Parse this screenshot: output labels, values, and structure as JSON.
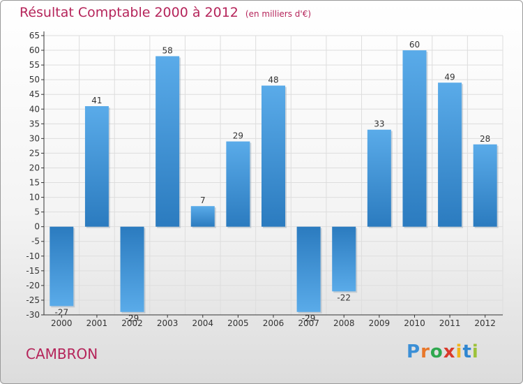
{
  "header": {
    "title": "Résultat Comptable 2000 à 2012",
    "unit": "(en milliers d'€)"
  },
  "footer": {
    "city": "CAMBRON",
    "logo": [
      "P",
      "r",
      "o",
      "x",
      "i",
      "t",
      "i"
    ],
    "logo_colors": [
      "#3b8fd6",
      "#e8772a",
      "#2fa84f",
      "#d93a2b",
      "#f0b51c",
      "#2f86d0",
      "#9dc23a"
    ]
  },
  "colors": {
    "bar_top": "#5aabe9",
    "bar_bottom": "#2b7bbf",
    "axis": "#333333",
    "grid": "#dddddd",
    "label": "#333333"
  },
  "chart_data": {
    "type": "bar",
    "title": "Résultat Comptable 2000 à 2012",
    "xlabel": "",
    "ylabel": "",
    "categories": [
      "2000",
      "2001",
      "2002",
      "2003",
      "2004",
      "2005",
      "2006",
      "2007",
      "2008",
      "2009",
      "2010",
      "2011",
      "2012"
    ],
    "values": [
      -27,
      41,
      -29,
      58,
      7,
      29,
      48,
      -29,
      -22,
      33,
      60,
      49,
      28
    ],
    "ylim": [
      -30,
      65
    ],
    "yticks": [
      -30,
      -25,
      -20,
      -15,
      -10,
      -5,
      0,
      5,
      10,
      15,
      20,
      25,
      30,
      35,
      40,
      45,
      50,
      55,
      60,
      65
    ],
    "ytick_labels": [
      "-30",
      "-25",
      "-20",
      "-15",
      "-10",
      "-5",
      "0",
      "5",
      "10",
      "15",
      "20",
      "25",
      "30",
      "35",
      "40",
      "45",
      "50",
      "55",
      "60",
      "65"
    ],
    "data_labels": [
      "-27",
      "41",
      "-29",
      "58",
      "7",
      "29",
      "48",
      "-29",
      "-22",
      "33",
      "60",
      "49",
      "28"
    ],
    "grid": true
  }
}
